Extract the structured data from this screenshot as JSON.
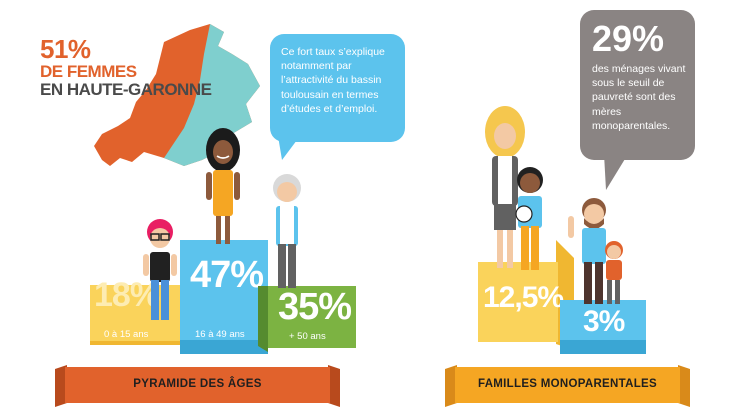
{
  "headline": {
    "percent": "51%",
    "line2": "DE FEMMES",
    "line3": "EN HAUTE-GARONNE"
  },
  "speech_blue": {
    "text": "Ce fort taux s’explique notamment par l’attractivité du bassin toulousain en termes d’études et d’emploi."
  },
  "speech_grey": {
    "percent": "29%",
    "text": "des ménages vivant sous le seuil de pauvreté sont des mères monoparentales."
  },
  "age_pyramid": {
    "bars": [
      {
        "value": "18%",
        "label": "0 à 15 ans",
        "color": "#fad35b"
      },
      {
        "value": "47%",
        "label": "16 à 49 ans",
        "color": "#5cc3ed"
      },
      {
        "value": "35%",
        "label": "+ 50 ans",
        "color": "#7cb342"
      }
    ],
    "banner": "PYRAMIDE DES ÂGES"
  },
  "single_parent": {
    "bars": [
      {
        "value": "12,5%",
        "color": "#fad35b"
      },
      {
        "value": "3%",
        "color": "#5cc3ed"
      }
    ],
    "banner": "FAMILLES MONOPARENTALES"
  },
  "colors": {
    "orange": "#e1622c",
    "teal": "#7fcfce",
    "blue": "#5cc3ed",
    "yellow": "#fad35b",
    "green": "#7cb342",
    "grey": "#8a8483"
  }
}
